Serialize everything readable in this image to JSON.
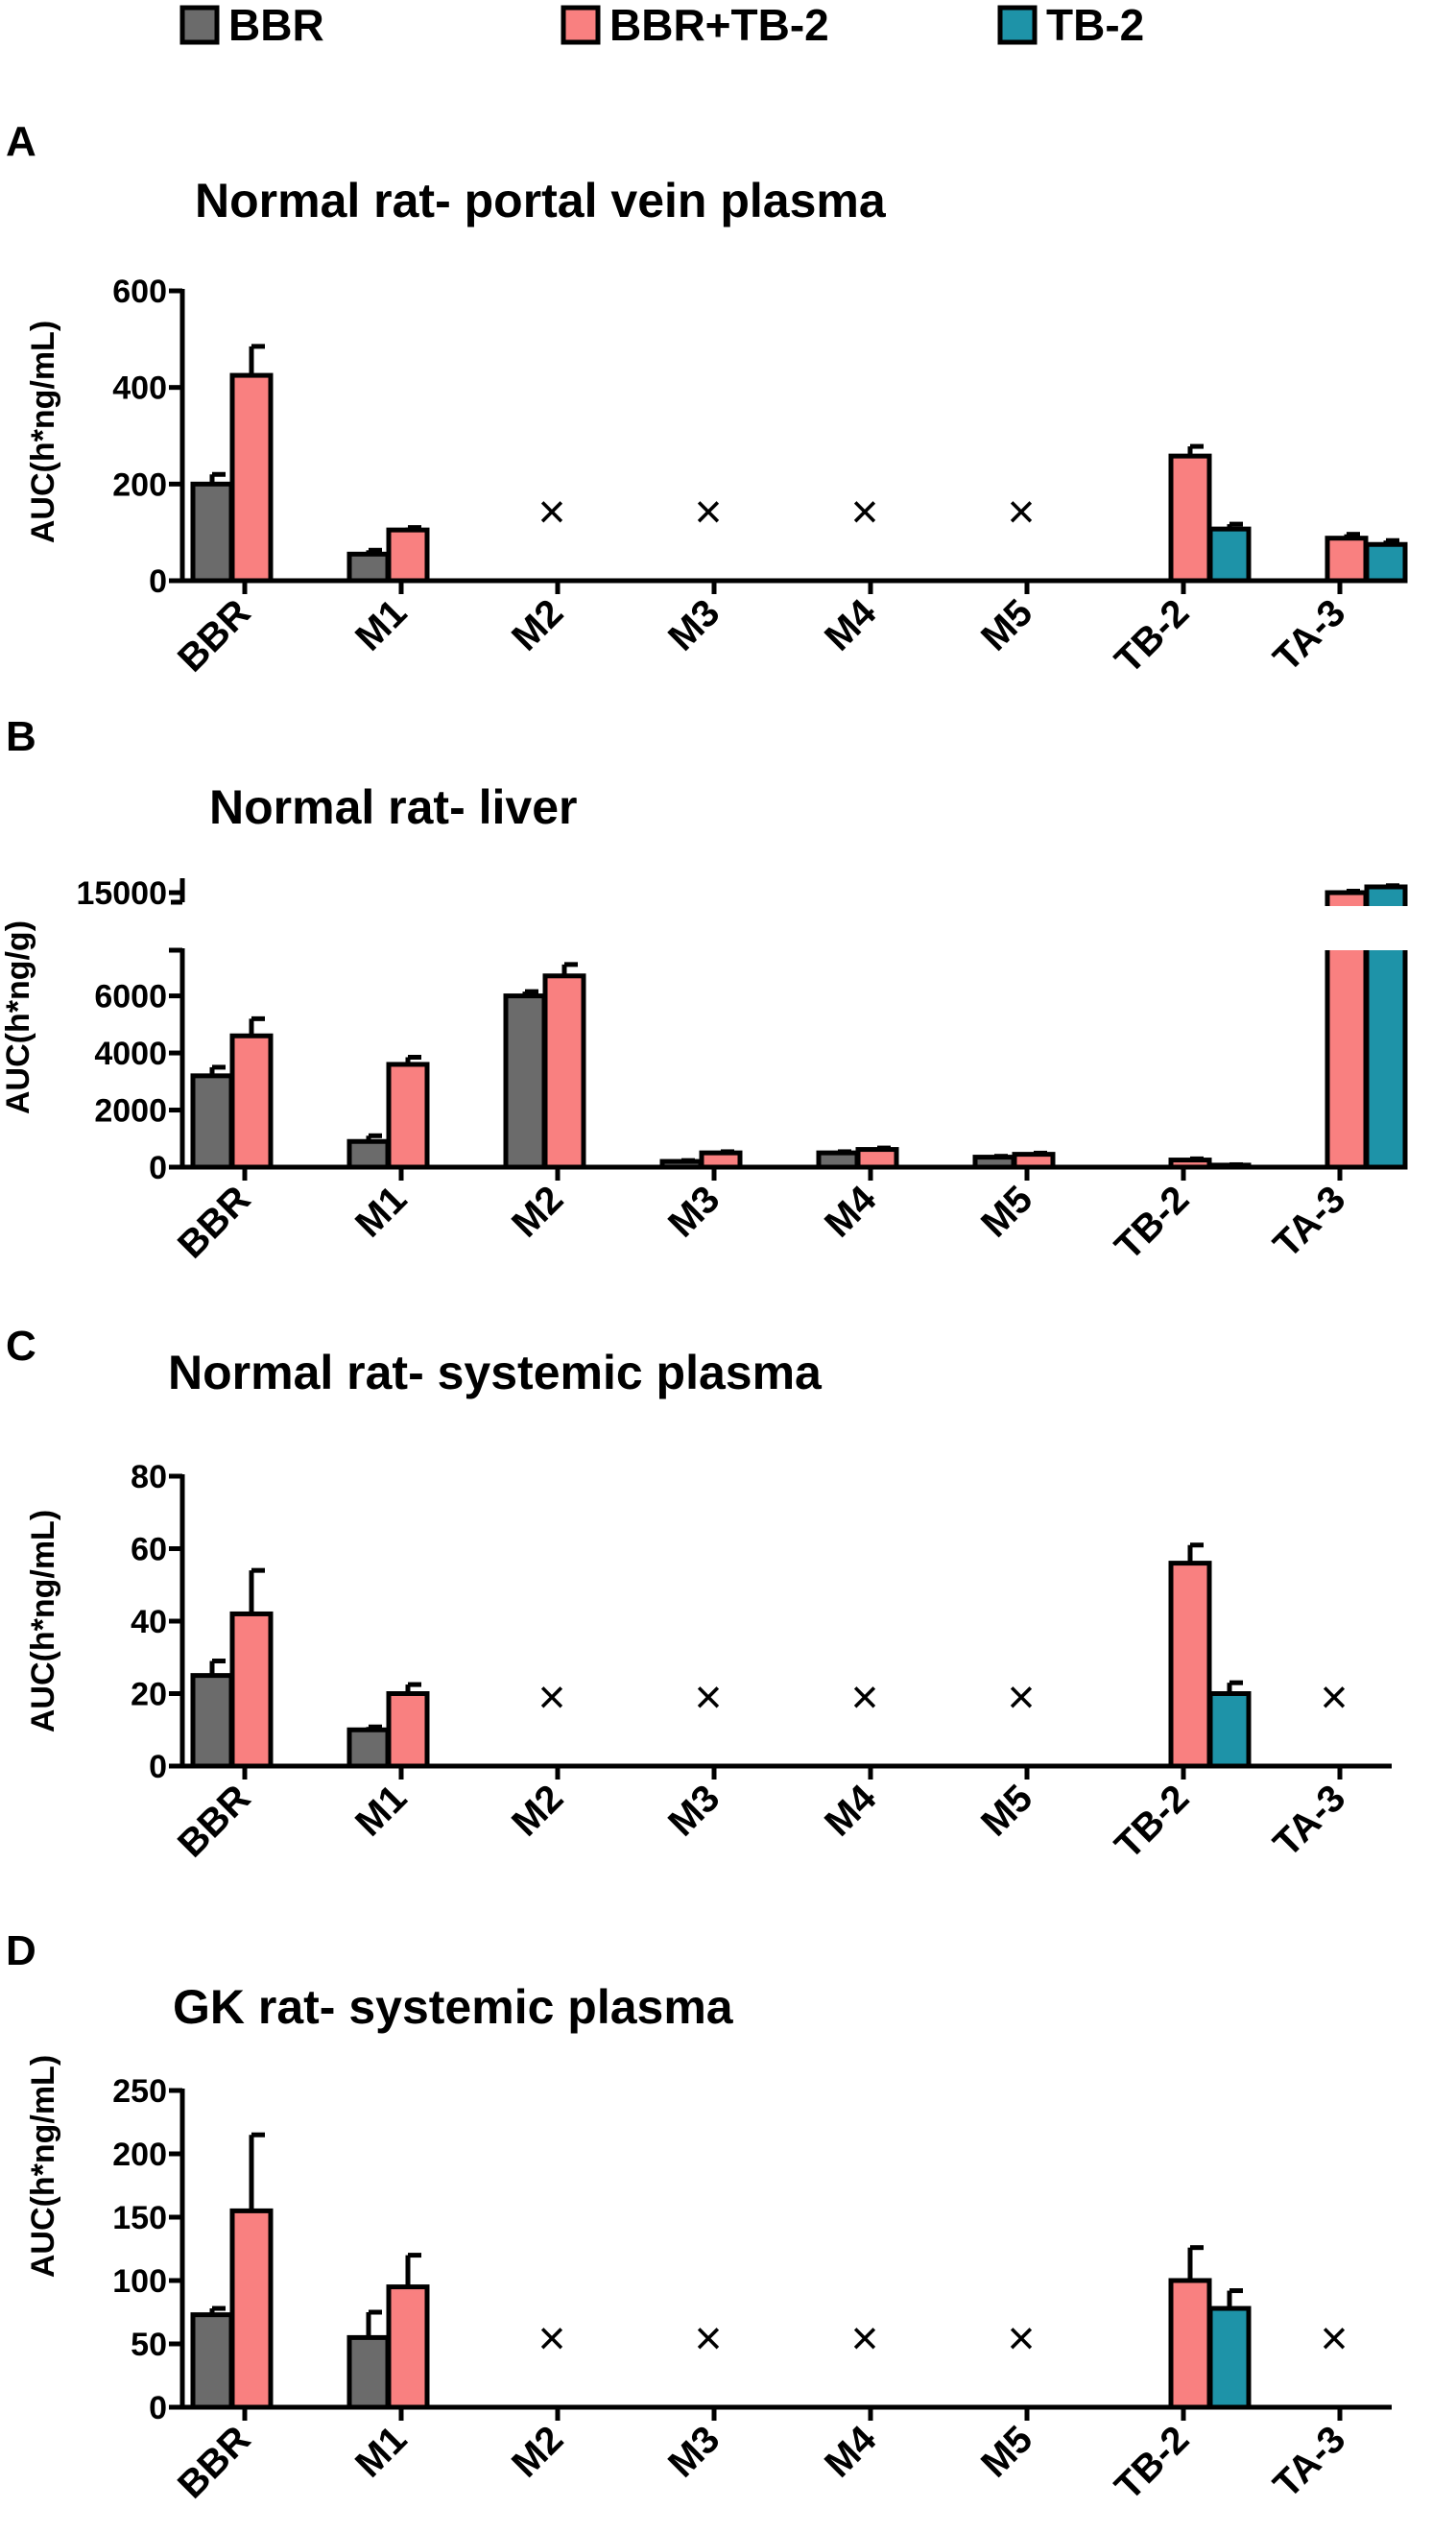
{
  "legend": {
    "series": [
      {
        "name": "BBR",
        "color": "#6b6b6b"
      },
      {
        "name": "BBR+TB-2",
        "color": "#f98080"
      },
      {
        "name": "TB-2",
        "color": "#1e93a8"
      }
    ]
  },
  "not_detected_marker": "×",
  "chart_data": [
    {
      "type": "bar",
      "panel": "A",
      "title": "Normal rat- portal vein plasma",
      "ylabel": "AUC(h*ng/mL)",
      "xlabel": "",
      "categories": [
        "BBR",
        "M1",
        "M2",
        "M3",
        "M4",
        "M5",
        "TB-2",
        "TA-3"
      ],
      "ylim": [
        0,
        600
      ],
      "yticks": [
        "0",
        "200",
        "400",
        "600"
      ],
      "series": [
        {
          "name": "BBR",
          "values": [
            200,
            55,
            null,
            null,
            null,
            null,
            null,
            null
          ],
          "errors": [
            20,
            8,
            null,
            null,
            null,
            null,
            null,
            null
          ]
        },
        {
          "name": "BBR+TB-2",
          "values": [
            425,
            105,
            null,
            null,
            null,
            null,
            258,
            88
          ],
          "errors": [
            60,
            5,
            null,
            null,
            null,
            null,
            20,
            8
          ]
        },
        {
          "name": "TB-2",
          "values": [
            null,
            null,
            null,
            null,
            null,
            null,
            107,
            75
          ],
          "errors": [
            null,
            null,
            null,
            null,
            null,
            null,
            10,
            8
          ]
        }
      ],
      "not_detected": [
        "M2",
        "M3",
        "M4",
        "M5"
      ]
    },
    {
      "type": "bar",
      "panel": "B",
      "title": "Normal rat- liver",
      "ylabel": "AUC(h*ng/g)",
      "xlabel": "",
      "categories": [
        "BBR",
        "M1",
        "M2",
        "M3",
        "M4",
        "M5",
        "TB-2",
        "TA-3"
      ],
      "ylim": [
        0,
        7600
      ],
      "yticks": [
        "0",
        "2000",
        "4000",
        "6000"
      ],
      "axis_break": {
        "lower_max": 7600,
        "upper_range": [
          14000,
          16000
        ],
        "upper_ticks": [
          "15000"
        ]
      },
      "series": [
        {
          "name": "BBR",
          "values": [
            3200,
            900,
            6000,
            200,
            500,
            350,
            null,
            null
          ],
          "errors": [
            300,
            200,
            150,
            30,
            40,
            30,
            null,
            null
          ]
        },
        {
          "name": "BBR+TB-2",
          "values": [
            4600,
            3600,
            6700,
            500,
            620,
            450,
            250,
            15000
          ],
          "errors": [
            600,
            250,
            400,
            40,
            50,
            40,
            40,
            100
          ]
        },
        {
          "name": "TB-2",
          "values": [
            null,
            null,
            null,
            null,
            null,
            null,
            70,
            15400
          ],
          "errors": [
            null,
            null,
            null,
            null,
            null,
            null,
            15,
            80
          ]
        }
      ],
      "not_detected": []
    },
    {
      "type": "bar",
      "panel": "C",
      "title": "Normal rat- systemic plasma",
      "ylabel": "AUC(h*ng/mL)",
      "xlabel": "",
      "categories": [
        "BBR",
        "M1",
        "M2",
        "M3",
        "M4",
        "M5",
        "TB-2",
        "TA-3"
      ],
      "ylim": [
        0,
        80
      ],
      "yticks": [
        "0",
        "20",
        "40",
        "60",
        "80"
      ],
      "series": [
        {
          "name": "BBR",
          "values": [
            25,
            10,
            null,
            null,
            null,
            null,
            null,
            null
          ],
          "errors": [
            4,
            0.8,
            null,
            null,
            null,
            null,
            null,
            null
          ]
        },
        {
          "name": "BBR+TB-2",
          "values": [
            42,
            20,
            null,
            null,
            null,
            null,
            56,
            null
          ],
          "errors": [
            12,
            2.5,
            null,
            null,
            null,
            null,
            5,
            null
          ]
        },
        {
          "name": "TB-2",
          "values": [
            null,
            null,
            null,
            null,
            null,
            null,
            20,
            null
          ],
          "errors": [
            null,
            null,
            null,
            null,
            null,
            null,
            3,
            null
          ]
        }
      ],
      "not_detected": [
        "M2",
        "M3",
        "M4",
        "M5",
        "TA-3"
      ]
    },
    {
      "type": "bar",
      "panel": "D",
      "title": "GK rat- systemic plasma",
      "ylabel": "AUC(h*ng/mL)",
      "xlabel": "",
      "categories": [
        "BBR",
        "M1",
        "M2",
        "M3",
        "M4",
        "M5",
        "TB-2",
        "TA-3"
      ],
      "ylim": [
        0,
        250
      ],
      "yticks": [
        "0",
        "50",
        "100",
        "150",
        "200",
        "250"
      ],
      "series": [
        {
          "name": "BBR",
          "values": [
            73,
            55,
            null,
            null,
            null,
            null,
            null,
            null
          ],
          "errors": [
            5,
            20,
            null,
            null,
            null,
            null,
            null,
            null
          ]
        },
        {
          "name": "BBR+TB-2",
          "values": [
            155,
            95,
            null,
            null,
            null,
            null,
            100,
            null
          ],
          "errors": [
            60,
            25,
            null,
            null,
            null,
            null,
            26,
            null
          ]
        },
        {
          "name": "TB-2",
          "values": [
            null,
            null,
            null,
            null,
            null,
            null,
            78,
            null
          ],
          "errors": [
            null,
            null,
            null,
            null,
            null,
            null,
            14,
            null
          ]
        }
      ],
      "not_detected": [
        "M2",
        "M3",
        "M4",
        "M5",
        "TA-3"
      ]
    }
  ]
}
